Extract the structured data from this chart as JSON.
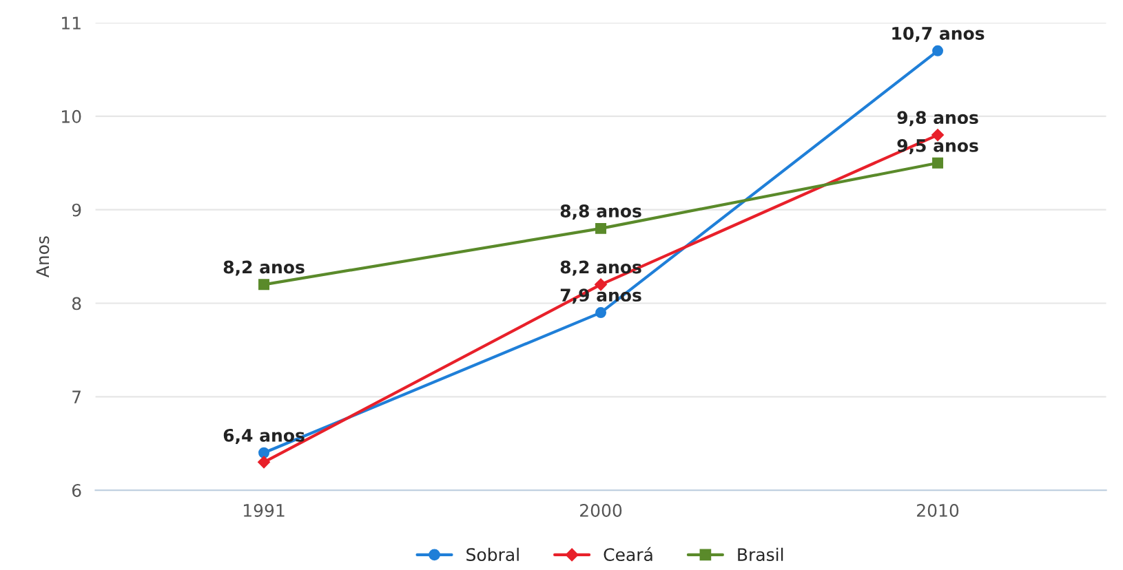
{
  "chart_data": {
    "type": "line",
    "ylabel": "Anos",
    "categories": [
      "1991",
      "2000",
      "2010"
    ],
    "series": [
      {
        "name": "Sobral",
        "color": "#1f7fd8",
        "marker": "circle",
        "values": [
          6.4,
          7.9,
          10.7
        ],
        "value_labels": [
          "6,4 anos",
          "7,9 anos",
          "10,7 anos"
        ]
      },
      {
        "name": "Ceará",
        "color": "#e8202a",
        "marker": "diamond",
        "values": [
          6.3,
          8.2,
          9.8
        ],
        "value_labels": [
          null,
          "8,2 anos",
          "9,8 anos"
        ]
      },
      {
        "name": "Brasil",
        "color": "#5a8a2a",
        "marker": "square",
        "values": [
          8.2,
          8.8,
          9.5
        ],
        "value_labels": [
          "8,2 anos",
          "8,8 anos",
          "9,5 anos"
        ]
      }
    ],
    "ylim": [
      6,
      11
    ],
    "yticks": [
      6,
      7,
      8,
      9,
      10,
      11
    ],
    "grid": "y",
    "legend": "bottom",
    "line_style": "solid"
  }
}
